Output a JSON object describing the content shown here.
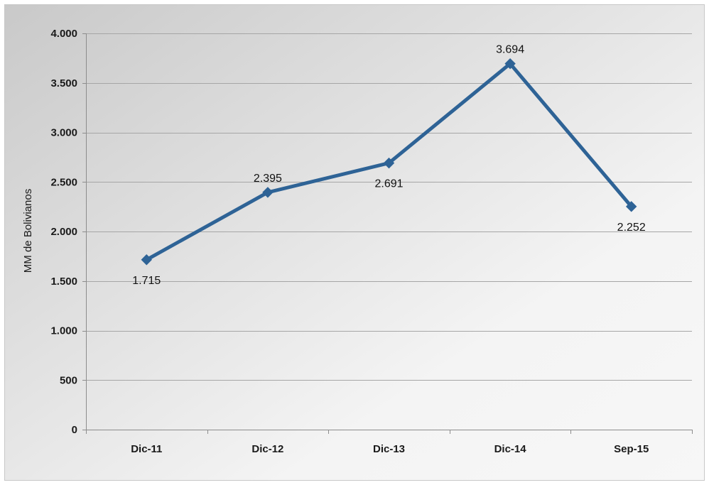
{
  "chart_data": {
    "type": "line",
    "title": "",
    "xlabel": "",
    "ylabel": "MM de Bolivianos",
    "categories": [
      "Dic-11",
      "Dic-12",
      "Dic-13",
      "Dic-14",
      "Sep-15"
    ],
    "series": [
      {
        "values": [
          1715,
          2395,
          2691,
          3694,
          2252
        ],
        "labels": [
          "1.715",
          "2.395",
          "2.691",
          "3.694",
          "2.252"
        ],
        "label_positions": [
          "below",
          "above",
          "below",
          "above",
          "below"
        ],
        "color": "#2E6396",
        "marker": "diamond"
      }
    ],
    "ylim": [
      0,
      4000
    ],
    "yticks": [
      0,
      500,
      1000,
      1500,
      2000,
      2500,
      3000,
      3500,
      4000
    ],
    "ytick_labels": [
      "0",
      "500",
      "1.000",
      "1.500",
      "2.000",
      "2.500",
      "3.000",
      "3.500",
      "4.000"
    ],
    "grid": true,
    "gridline_color": "#a6a6a6",
    "background_gradient": [
      "#c9c9c9",
      "#f4f4f4"
    ],
    "legend": "none"
  }
}
